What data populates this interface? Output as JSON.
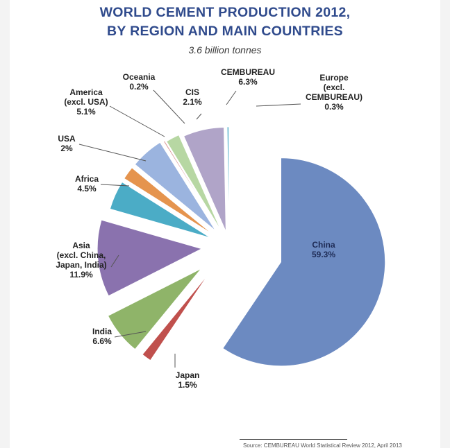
{
  "title_lines": [
    "WORLD CEMENT PRODUCTION 2012,",
    "BY REGION AND MAIN COUNTRIES"
  ],
  "subtitle": "3.6 billion tonnes",
  "footer_note": "Source: CEMBUREAU World Statistical Review 2012, April 2013",
  "chart_data": {
    "type": "pie",
    "title": "WORLD CEMENT PRODUCTION 2012, BY REGION AND MAIN COUNTRIES",
    "subtitle": "3.6 billion tonnes",
    "exploded": true,
    "unit": "%",
    "slices": [
      {
        "label_lines": [
          "China",
          "59.3%"
        ],
        "value": 59.3,
        "color": "#6c8ac1"
      },
      {
        "label_lines": [
          "Japan",
          "1.5%"
        ],
        "value": 1.5,
        "color": "#c0504d"
      },
      {
        "label_lines": [
          "India",
          "6.6%"
        ],
        "value": 6.6,
        "color": "#8fb469"
      },
      {
        "label_lines": [
          "Asia",
          "(excl. China,",
          "Japan, India)",
          "11.9%"
        ],
        "value": 11.9,
        "color": "#8a72ae"
      },
      {
        "label_lines": [
          "Africa",
          "4.5%"
        ],
        "value": 4.5,
        "color": "#4bacc6"
      },
      {
        "label_lines": [
          "USA",
          "2%"
        ],
        "value": 2.0,
        "color": "#e5944e"
      },
      {
        "label_lines": [
          "America",
          "(excl. USA)",
          "5.1%"
        ],
        "value": 5.1,
        "color": "#9bb4df"
      },
      {
        "label_lines": [
          "Oceania",
          "0.2%"
        ],
        "value": 0.2,
        "color": "#d99694"
      },
      {
        "label_lines": [
          "CIS",
          "2.1%"
        ],
        "value": 2.1,
        "color": "#b7d7a3"
      },
      {
        "label_lines": [
          "CEMBUREAU",
          "6.3%"
        ],
        "value": 6.3,
        "color": "#b0a4c8"
      },
      {
        "label_lines": [
          "Europe",
          "(excl.",
          "CEMBUREAU)",
          "0.3%"
        ],
        "value": 0.3,
        "color": "#7ec3d8"
      }
    ]
  }
}
